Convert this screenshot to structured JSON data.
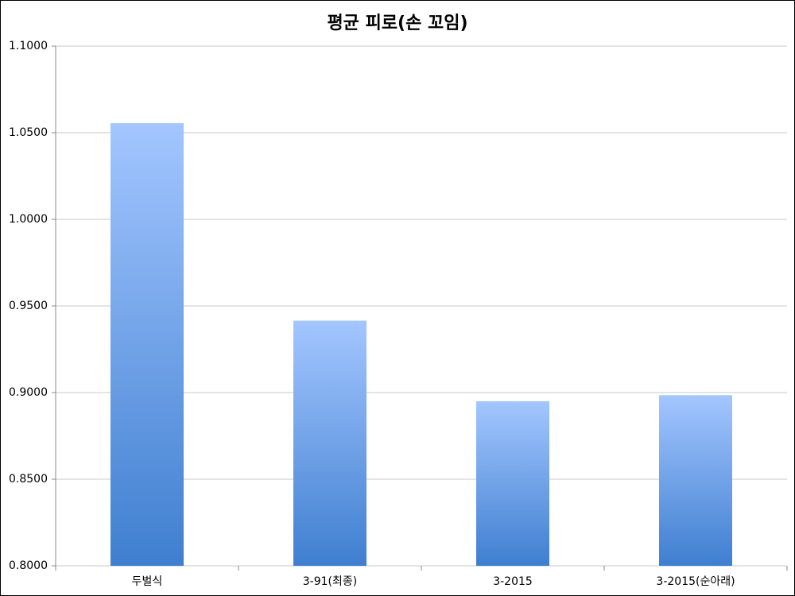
{
  "chart_data": {
    "type": "bar",
    "title": "평균 피로(손 꼬임)",
    "categories": [
      "두벌식",
      "3-91(최종)",
      "3-2015",
      "3-2015(순아래)"
    ],
    "values": [
      1.0555,
      0.9415,
      0.895,
      0.8985
    ],
    "color": "#4a86d6",
    "ylim": [
      0.8,
      1.1
    ],
    "yticks": [
      {
        "value": 0.8,
        "label": "0.8000"
      },
      {
        "value": 0.85,
        "label": "0.8500"
      },
      {
        "value": 0.9,
        "label": "0.9000"
      },
      {
        "value": 0.95,
        "label": "0.9500"
      },
      {
        "value": 1.0,
        "label": "1.0000"
      },
      {
        "value": 1.05,
        "label": "1.0500"
      },
      {
        "value": 1.1,
        "label": "1.1000"
      }
    ],
    "grid": true
  }
}
